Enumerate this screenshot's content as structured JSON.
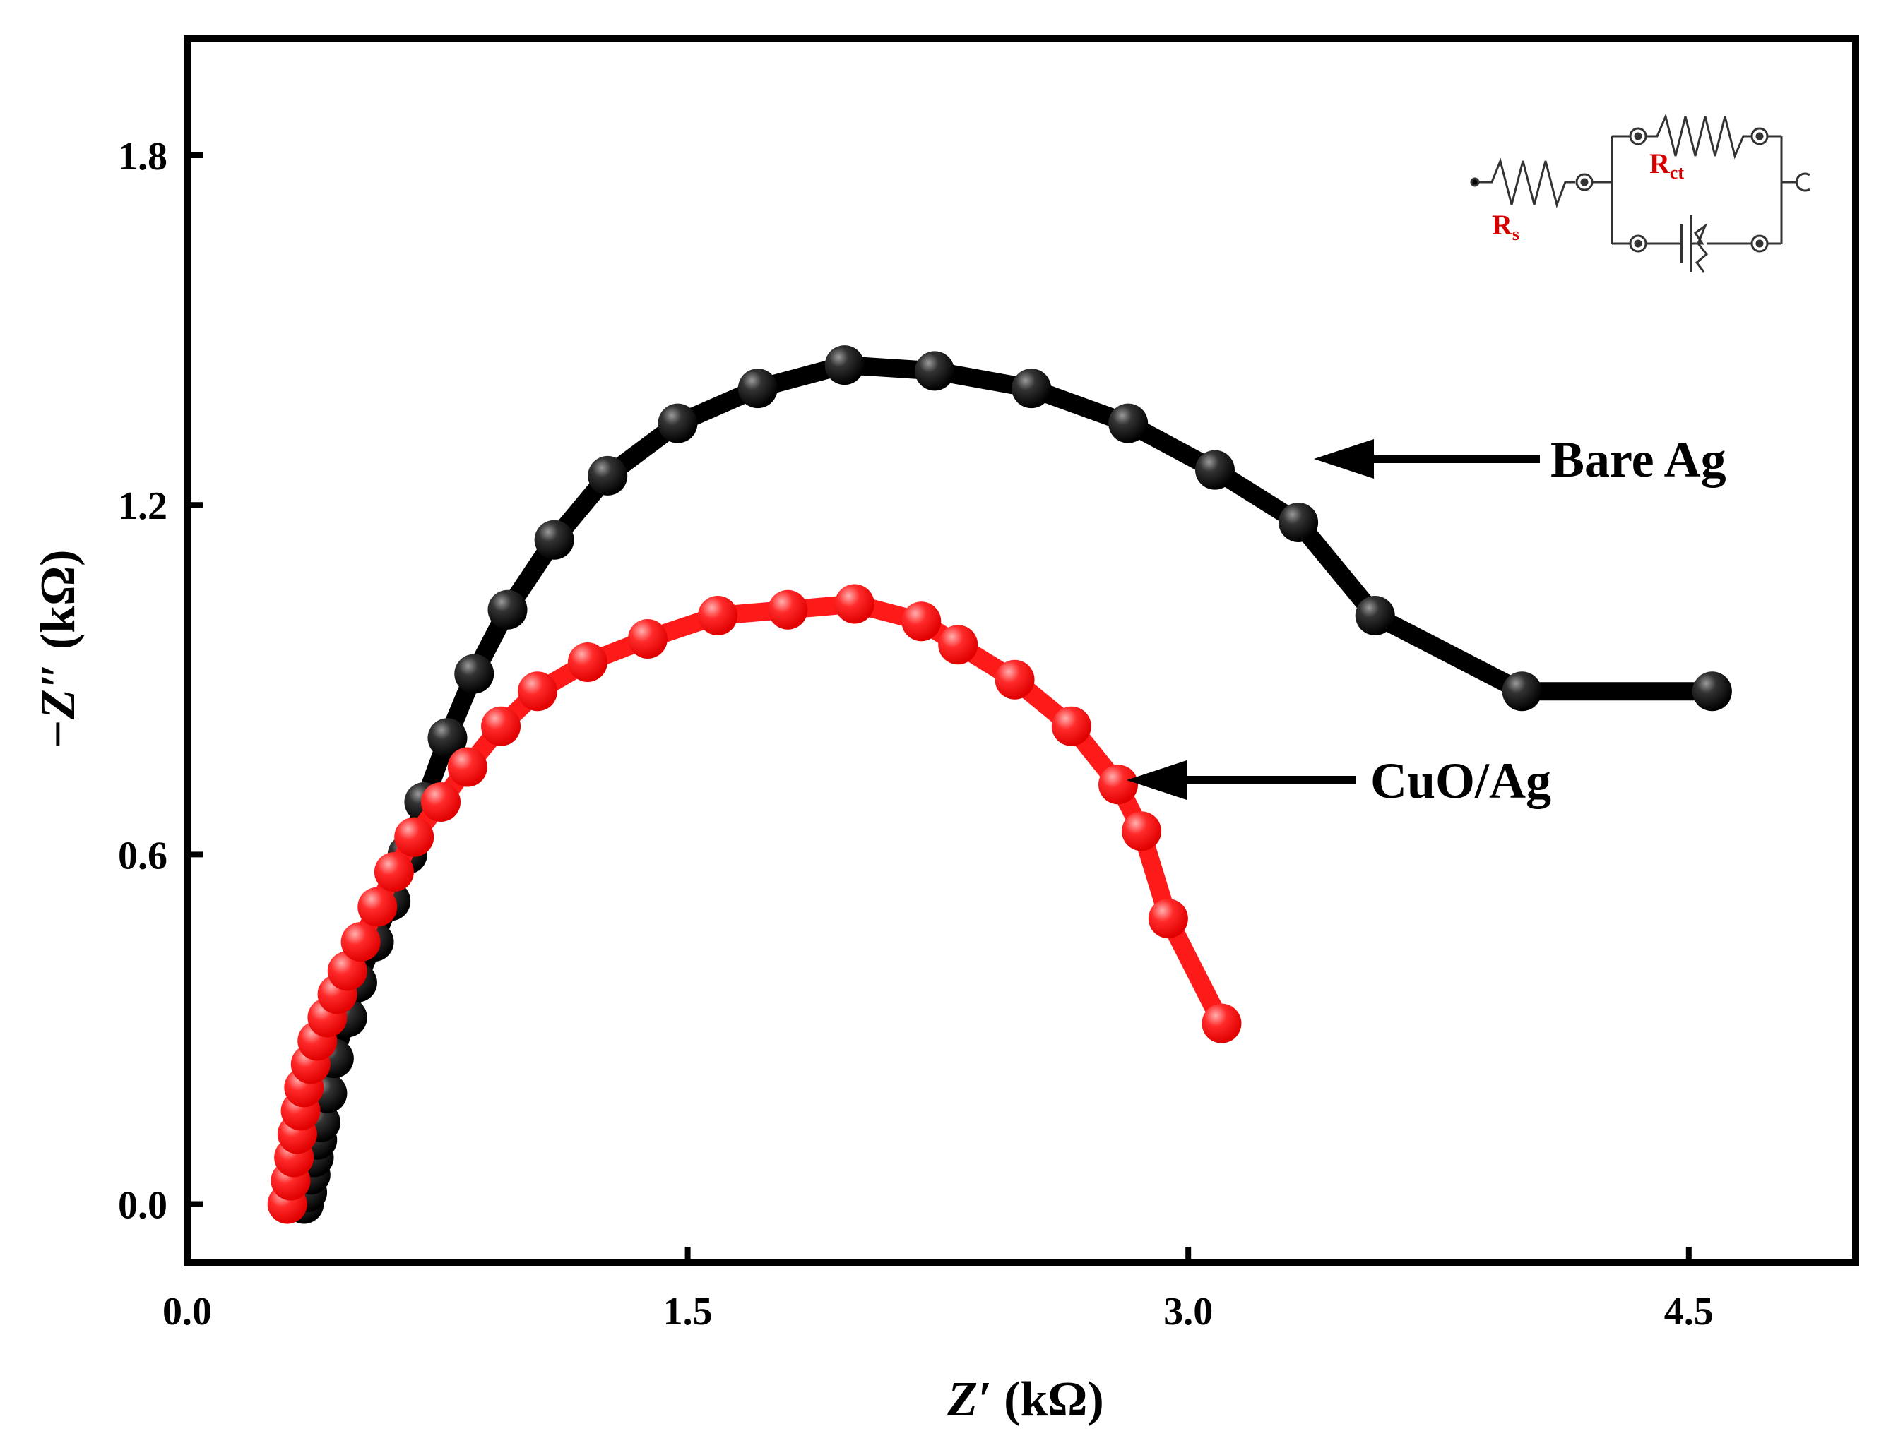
{
  "chart_data": {
    "type": "scatter",
    "title": "",
    "xlabel_main": "Z′",
    "xlabel_unit": " (kΩ)",
    "ylabel_main": "−Z″",
    "ylabel_unit": " (kΩ)",
    "xlim": [
      0.0,
      5.0
    ],
    "ylim": [
      -0.1,
      2.0
    ],
    "xticks": [
      0.0,
      1.5,
      3.0,
      4.5
    ],
    "xtick_labels": [
      "0.0",
      "1.5",
      "3.0",
      "4.5"
    ],
    "yticks": [
      0.0,
      0.6,
      1.2,
      1.8
    ],
    "ytick_labels": [
      "0.0",
      "0.6",
      "1.2",
      "1.8"
    ],
    "grid": false,
    "series": [
      {
        "name": "Bare Ag",
        "color": "#000000",
        "x": [
          0.35,
          0.36,
          0.37,
          0.38,
          0.39,
          0.4,
          0.42,
          0.44,
          0.48,
          0.51,
          0.56,
          0.61,
          0.66,
          0.71,
          0.78,
          0.86,
          0.96,
          1.1,
          1.26,
          1.47,
          1.71,
          1.97,
          2.24,
          2.53,
          2.82,
          3.08,
          3.33,
          3.56,
          4.0,
          4.57
        ],
        "y": [
          0.0,
          0.02,
          0.05,
          0.08,
          0.11,
          0.14,
          0.19,
          0.25,
          0.32,
          0.38,
          0.45,
          0.52,
          0.6,
          0.69,
          0.8,
          0.91,
          1.02,
          1.14,
          1.25,
          1.34,
          1.4,
          1.44,
          1.43,
          1.4,
          1.34,
          1.26,
          1.17,
          1.01,
          0.88,
          0.88
        ]
      },
      {
        "name": "CuO/Ag",
        "color": "#ff1a1a",
        "x": [
          0.3,
          0.31,
          0.32,
          0.33,
          0.34,
          0.35,
          0.37,
          0.39,
          0.42,
          0.45,
          0.48,
          0.52,
          0.57,
          0.62,
          0.68,
          0.76,
          0.84,
          0.94,
          1.05,
          1.2,
          1.38,
          1.59,
          1.8,
          2.0,
          2.2,
          2.31,
          2.48,
          2.65,
          2.79,
          2.86,
          2.94,
          3.1
        ],
        "y": [
          0.0,
          0.04,
          0.08,
          0.12,
          0.16,
          0.2,
          0.24,
          0.28,
          0.32,
          0.36,
          0.4,
          0.45,
          0.51,
          0.57,
          0.63,
          0.69,
          0.75,
          0.82,
          0.88,
          0.93,
          0.97,
          1.01,
          1.02,
          1.03,
          1.0,
          0.96,
          0.9,
          0.82,
          0.72,
          0.64,
          0.49,
          0.31
        ]
      }
    ],
    "annotations": [
      {
        "text": "Bare Ag",
        "points_to_series": "Bare Ag",
        "target": [
          3.38,
          1.28
        ]
      },
      {
        "text": "CuO/Ag",
        "points_to_series": "CuO/Ag",
        "target": [
          2.85,
          0.73
        ]
      }
    ],
    "inset": {
      "description": "equivalent circuit",
      "labels": [
        "R",
        "s",
        "R",
        "ct"
      ]
    }
  }
}
